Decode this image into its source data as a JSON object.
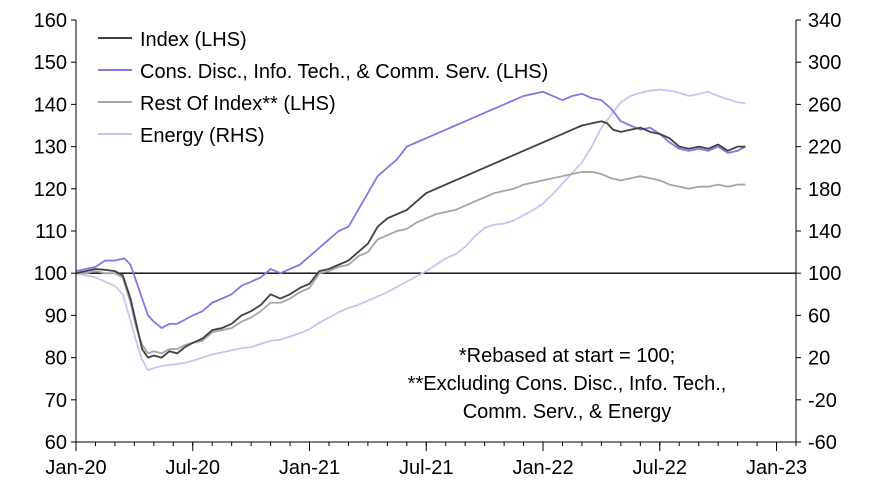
{
  "chart_data": {
    "type": "line",
    "title": "",
    "xlabel": "",
    "ylabel": "",
    "x_ticks": [
      "Jan-20",
      "Jul-20",
      "Jan-21",
      "Jul-21",
      "Jan-22",
      "Jul-22",
      "Jan-23"
    ],
    "x_range_months": [
      0,
      37
    ],
    "ylim_left": [
      60,
      160
    ],
    "yticks_left": [
      60,
      70,
      80,
      90,
      100,
      110,
      120,
      130,
      140,
      150,
      160
    ],
    "ylim_right": [
      -60,
      340
    ],
    "yticks_right": [
      -60,
      -20,
      20,
      60,
      100,
      140,
      180,
      220,
      260,
      300,
      340
    ],
    "reference_line": 100,
    "legend_position": "top-left",
    "series": [
      {
        "name": "Index (LHS)",
        "axis": "left",
        "color": "#404040",
        "points": [
          [
            0,
            100
          ],
          [
            0.5,
            100.5
          ],
          [
            1,
            101
          ],
          [
            1.5,
            100.8
          ],
          [
            2,
            100.5
          ],
          [
            2.4,
            99.5
          ],
          [
            2.8,
            94
          ],
          [
            3.1,
            88
          ],
          [
            3.4,
            82
          ],
          [
            3.7,
            80
          ],
          [
            4,
            80.5
          ],
          [
            4.4,
            80
          ],
          [
            4.8,
            81.5
          ],
          [
            5.2,
            81
          ],
          [
            5.6,
            82.5
          ],
          [
            6,
            83.5
          ],
          [
            6.5,
            84.5
          ],
          [
            7,
            86.5
          ],
          [
            7.5,
            87
          ],
          [
            8,
            88
          ],
          [
            8.5,
            90
          ],
          [
            9,
            91
          ],
          [
            9.5,
            92.5
          ],
          [
            10,
            95
          ],
          [
            10.5,
            94
          ],
          [
            11,
            95
          ],
          [
            11.5,
            96.5
          ],
          [
            12,
            97.5
          ],
          [
            12.5,
            100.5
          ],
          [
            13,
            101
          ],
          [
            13.5,
            102
          ],
          [
            14,
            103
          ],
          [
            14.5,
            105
          ],
          [
            15,
            107
          ],
          [
            15.5,
            111
          ],
          [
            16,
            113
          ],
          [
            16.5,
            114
          ],
          [
            17,
            115
          ],
          [
            17.5,
            117
          ],
          [
            18,
            119
          ],
          [
            18.5,
            120
          ],
          [
            19,
            121
          ],
          [
            19.5,
            122
          ],
          [
            20,
            123
          ],
          [
            20.5,
            124
          ],
          [
            21,
            125
          ],
          [
            21.5,
            126
          ],
          [
            22,
            127
          ],
          [
            22.5,
            128
          ],
          [
            23,
            129
          ],
          [
            23.5,
            130
          ],
          [
            24,
            131
          ],
          [
            24.5,
            132
          ],
          [
            25,
            133
          ],
          [
            25.5,
            134
          ],
          [
            26,
            135
          ],
          [
            26.5,
            135.5
          ],
          [
            27,
            136
          ],
          [
            27.3,
            135.5
          ],
          [
            27.6,
            134
          ],
          [
            28,
            133.5
          ],
          [
            28.5,
            134
          ],
          [
            29,
            134.5
          ],
          [
            29.5,
            133.5
          ],
          [
            30,
            133
          ],
          [
            30.5,
            132
          ],
          [
            31,
            130
          ],
          [
            31.5,
            129.5
          ],
          [
            32,
            130
          ],
          [
            32.5,
            129.5
          ],
          [
            33,
            130.5
          ],
          [
            33.5,
            129
          ],
          [
            34,
            130
          ],
          [
            34.4,
            130
          ]
        ]
      },
      {
        "name": "Cons. Disc., Info. Tech., & Comm. Serv. (LHS)",
        "axis": "left",
        "color": "#7b7be6",
        "points": [
          [
            0,
            100.5
          ],
          [
            0.5,
            101
          ],
          [
            1,
            101.5
          ],
          [
            1.5,
            103
          ],
          [
            2,
            103
          ],
          [
            2.5,
            103.5
          ],
          [
            2.8,
            102
          ],
          [
            3.1,
            98
          ],
          [
            3.4,
            94
          ],
          [
            3.7,
            90
          ],
          [
            4,
            88.5
          ],
          [
            4.4,
            87
          ],
          [
            4.8,
            88
          ],
          [
            5.2,
            88
          ],
          [
            5.6,
            89
          ],
          [
            6,
            90
          ],
          [
            6.5,
            91
          ],
          [
            7,
            93
          ],
          [
            7.5,
            94
          ],
          [
            8,
            95
          ],
          [
            8.5,
            97
          ],
          [
            9,
            98
          ],
          [
            9.5,
            99
          ],
          [
            10,
            101
          ],
          [
            10.5,
            100
          ],
          [
            11,
            101
          ],
          [
            11.5,
            102
          ],
          [
            12,
            104
          ],
          [
            12.5,
            106
          ],
          [
            13,
            108
          ],
          [
            13.5,
            110
          ],
          [
            14,
            111
          ],
          [
            14.5,
            115
          ],
          [
            15,
            119
          ],
          [
            15.5,
            123
          ],
          [
            16,
            125
          ],
          [
            16.5,
            127
          ],
          [
            17,
            130
          ],
          [
            17.5,
            131
          ],
          [
            18,
            132
          ],
          [
            18.5,
            133
          ],
          [
            19,
            134
          ],
          [
            19.5,
            135
          ],
          [
            20,
            136
          ],
          [
            20.5,
            137
          ],
          [
            21,
            138
          ],
          [
            21.5,
            139
          ],
          [
            22,
            140
          ],
          [
            22.5,
            141
          ],
          [
            23,
            142
          ],
          [
            23.5,
            142.5
          ],
          [
            24,
            143
          ],
          [
            24.5,
            142
          ],
          [
            25,
            141
          ],
          [
            25.5,
            142
          ],
          [
            26,
            142.5
          ],
          [
            26.5,
            141.5
          ],
          [
            27,
            141
          ],
          [
            27.5,
            139
          ],
          [
            28,
            136
          ],
          [
            28.5,
            135
          ],
          [
            29,
            134
          ],
          [
            29.5,
            134.5
          ],
          [
            30,
            133
          ],
          [
            30.5,
            131
          ],
          [
            31,
            129.5
          ],
          [
            31.5,
            129
          ],
          [
            32,
            129.5
          ],
          [
            32.5,
            129
          ],
          [
            33,
            130
          ],
          [
            33.5,
            128.5
          ],
          [
            34,
            129
          ],
          [
            34.4,
            130
          ]
        ]
      },
      {
        "name": "Rest Of Index** (LHS)",
        "axis": "left",
        "color": "#a6a6a6",
        "points": [
          [
            0,
            100
          ],
          [
            0.5,
            100
          ],
          [
            1,
            100.5
          ],
          [
            1.5,
            100
          ],
          [
            2,
            100
          ],
          [
            2.4,
            99
          ],
          [
            2.8,
            93
          ],
          [
            3.1,
            87
          ],
          [
            3.4,
            83
          ],
          [
            3.7,
            81
          ],
          [
            4,
            81.5
          ],
          [
            4.4,
            81
          ],
          [
            4.8,
            82
          ],
          [
            5.2,
            82
          ],
          [
            5.6,
            83
          ],
          [
            6,
            83.5
          ],
          [
            6.5,
            84
          ],
          [
            7,
            86
          ],
          [
            7.5,
            86.5
          ],
          [
            8,
            87
          ],
          [
            8.5,
            88.5
          ],
          [
            9,
            89.5
          ],
          [
            9.5,
            91
          ],
          [
            10,
            93
          ],
          [
            10.5,
            93
          ],
          [
            11,
            94
          ],
          [
            11.5,
            95.5
          ],
          [
            12,
            96.5
          ],
          [
            12.5,
            100
          ],
          [
            13,
            100.5
          ],
          [
            13.5,
            101.5
          ],
          [
            14,
            102
          ],
          [
            14.5,
            104
          ],
          [
            15,
            105
          ],
          [
            15.5,
            108
          ],
          [
            16,
            109
          ],
          [
            16.5,
            110
          ],
          [
            17,
            110.5
          ],
          [
            17.5,
            112
          ],
          [
            18,
            113
          ],
          [
            18.5,
            114
          ],
          [
            19,
            114.5
          ],
          [
            19.5,
            115
          ],
          [
            20,
            116
          ],
          [
            20.5,
            117
          ],
          [
            21,
            118
          ],
          [
            21.5,
            119
          ],
          [
            22,
            119.5
          ],
          [
            22.5,
            120
          ],
          [
            23,
            121
          ],
          [
            23.5,
            121.5
          ],
          [
            24,
            122
          ],
          [
            24.5,
            122.5
          ],
          [
            25,
            123
          ],
          [
            25.5,
            123.5
          ],
          [
            26,
            124
          ],
          [
            26.5,
            124
          ],
          [
            27,
            123.5
          ],
          [
            27.5,
            122.5
          ],
          [
            28,
            122
          ],
          [
            28.5,
            122.5
          ],
          [
            29,
            123
          ],
          [
            29.5,
            122.5
          ],
          [
            30,
            122
          ],
          [
            30.5,
            121
          ],
          [
            31,
            120.5
          ],
          [
            31.5,
            120
          ],
          [
            32,
            120.5
          ],
          [
            32.5,
            120.5
          ],
          [
            33,
            121
          ],
          [
            33.5,
            120.5
          ],
          [
            34,
            121
          ],
          [
            34.4,
            121
          ]
        ]
      },
      {
        "name": "Energy (RHS)",
        "axis": "right",
        "color": "#c5c5f2",
        "points": [
          [
            0,
            100
          ],
          [
            0.5,
            98
          ],
          [
            1,
            96
          ],
          [
            1.5,
            92
          ],
          [
            2,
            88
          ],
          [
            2.4,
            80
          ],
          [
            2.8,
            55
          ],
          [
            3.1,
            35
          ],
          [
            3.4,
            18
          ],
          [
            3.7,
            8
          ],
          [
            4,
            10
          ],
          [
            4.4,
            12
          ],
          [
            4.8,
            13
          ],
          [
            5.2,
            14
          ],
          [
            5.6,
            15
          ],
          [
            6,
            17
          ],
          [
            6.5,
            20
          ],
          [
            7,
            23
          ],
          [
            7.5,
            25
          ],
          [
            8,
            27
          ],
          [
            8.5,
            29
          ],
          [
            9,
            30
          ],
          [
            9.5,
            33
          ],
          [
            10,
            36
          ],
          [
            10.5,
            37
          ],
          [
            11,
            40
          ],
          [
            11.5,
            43
          ],
          [
            12,
            47
          ],
          [
            12.5,
            53
          ],
          [
            13,
            58
          ],
          [
            13.5,
            63
          ],
          [
            14,
            67
          ],
          [
            14.5,
            70
          ],
          [
            15,
            74
          ],
          [
            15.5,
            78
          ],
          [
            16,
            82
          ],
          [
            16.5,
            87
          ],
          [
            17,
            92
          ],
          [
            17.5,
            97
          ],
          [
            18,
            102
          ],
          [
            18.5,
            108
          ],
          [
            19,
            114
          ],
          [
            19.5,
            118
          ],
          [
            20,
            125
          ],
          [
            20.5,
            135
          ],
          [
            21,
            143
          ],
          [
            21.5,
            146
          ],
          [
            22,
            147
          ],
          [
            22.5,
            150
          ],
          [
            23,
            155
          ],
          [
            23.5,
            160
          ],
          [
            24,
            166
          ],
          [
            24.5,
            175
          ],
          [
            25,
            185
          ],
          [
            25.5,
            195
          ],
          [
            26,
            205
          ],
          [
            26.5,
            220
          ],
          [
            27,
            238
          ],
          [
            27.5,
            250
          ],
          [
            28,
            262
          ],
          [
            28.5,
            268
          ],
          [
            29,
            271
          ],
          [
            29.5,
            273
          ],
          [
            30,
            274
          ],
          [
            30.5,
            273
          ],
          [
            31,
            271
          ],
          [
            31.5,
            268
          ],
          [
            32,
            270
          ],
          [
            32.5,
            272
          ],
          [
            33,
            268
          ],
          [
            33.5,
            265
          ],
          [
            34,
            262
          ],
          [
            34.4,
            261
          ]
        ]
      }
    ],
    "annotations": [
      "*Rebased at start = 100;",
      "**Excluding Cons. Disc., Info. Tech.,",
      "Comm. Serv., & Energy"
    ]
  }
}
